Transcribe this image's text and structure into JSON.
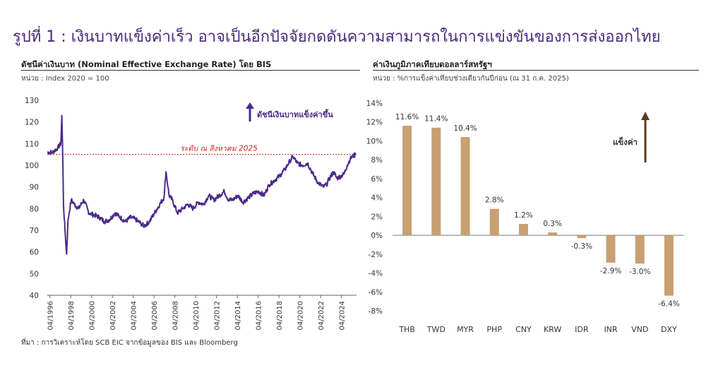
{
  "title": "รูปที่ 1 : เงินบาทแข็งค่าเร็ว อาจเป็นอีกปัจจัยกดดันความสามารถในการแข่งขันของการส่งออกไทย",
  "source": "ที่มา : การวิเคราะห์โดย SCB EIC จากข้อมูลของ BIS และ Bloomberg",
  "colors": {
    "line": "#4b2a8c",
    "bar": "#c8a072",
    "ref_line": "#cc2222",
    "title": "#4b2a7b",
    "arrow_up": "#5a3b1c"
  },
  "chart_data": [
    {
      "type": "line",
      "title": "ดัชนีค่าเงินบาท (Nominal Effective Exchange Rate) โดย BIS",
      "unit": "หน่วย : Index 2020 = 100",
      "ylim": [
        40,
        130
      ],
      "y_ticks": [
        "130",
        "120",
        "110",
        "100",
        "90",
        "80",
        "70",
        "60",
        "50",
        "40"
      ],
      "x_ticks": [
        "04/1996",
        "04/1998",
        "04/2000",
        "04/2002",
        "04/2004",
        "04/2006",
        "04/2008",
        "04/2010",
        "04/2012",
        "04/2014",
        "04/2016",
        "04/2018",
        "04/2020",
        "04/2022",
        "04/2024"
      ],
      "reference": {
        "value": 105,
        "label": "ระดับ ณ สิงหาคม 2025"
      },
      "annotation": "ดัชนีเงินบาทแข็งค่าขึ้น",
      "grid": false,
      "series": [
        {
          "x": [
            1996.0,
            1996.5,
            1997.0,
            1997.3,
            1997.4,
            1997.5,
            1997.55,
            1997.7,
            1997.85,
            1998.0,
            1998.1,
            1998.3,
            1998.6,
            1999.0,
            1999.5,
            2000.0,
            2000.5,
            2001.0,
            2001.5,
            2002.0,
            2002.5,
            2003.0,
            2003.5,
            2004.0,
            2004.5,
            2005.0,
            2005.3,
            2005.8,
            2006.3,
            2006.8,
            2007.2,
            2007.4,
            2007.7,
            2008.0,
            2008.5,
            2009.0,
            2009.5,
            2010.0,
            2010.5,
            2011.0,
            2011.5,
            2012.0,
            2012.5,
            2013.0,
            2013.4,
            2013.8,
            2014.3,
            2014.8,
            2015.3,
            2015.8,
            2016.3,
            2016.8,
            2017.3,
            2017.8,
            2018.3,
            2018.8,
            2019.3,
            2019.6,
            2020.0,
            2020.5,
            2021.0,
            2021.5,
            2022.0,
            2022.5,
            2022.8,
            2023.1,
            2023.5,
            2023.8,
            2024.2,
            2024.5,
            2024.8,
            2025.1,
            2025.3,
            2025.6
          ],
          "values": [
            106,
            106,
            108,
            110,
            123,
            100,
            82,
            70,
            59,
            75,
            78,
            84,
            82,
            80,
            84,
            78,
            77,
            76,
            74,
            75,
            78,
            76,
            74,
            76,
            75,
            73,
            72,
            74,
            78,
            82,
            85,
            97,
            86,
            84,
            78,
            80,
            82,
            80,
            83,
            82,
            86,
            84,
            86,
            88,
            84,
            84,
            86,
            83,
            85,
            87,
            88,
            86,
            91,
            93,
            95,
            98,
            102,
            104,
            101,
            100,
            101,
            96,
            92,
            90,
            91,
            94,
            97,
            94,
            95,
            96,
            100,
            103,
            104,
            105
          ]
        }
      ]
    },
    {
      "type": "bar",
      "title": "ค่าเงินภูมิภาคเทียบดอลลาร์สหรัฐฯ",
      "unit": "หน่วย : %การแข็งค่าเทียบช่วงเดียวกันปีก่อน (ณ 31 ก.ค. 2025)",
      "ylim": [
        -8,
        14
      ],
      "y_ticks": [
        "14%",
        "12%",
        "10%",
        "8%",
        "6%",
        "4%",
        "2%",
        "0%",
        "-2%",
        "-4%",
        "-6%",
        "-8%"
      ],
      "categories": [
        "THB",
        "TWD",
        "MYR",
        "PHP",
        "CNY",
        "KRW",
        "IDR",
        "INR",
        "VND",
        "DXY"
      ],
      "values": [
        11.6,
        11.4,
        10.4,
        2.8,
        1.2,
        0.3,
        -0.3,
        -2.9,
        -3.0,
        -6.4
      ],
      "data_labels": [
        "11.6%",
        "11.4%",
        "10.4%",
        "2.8%",
        "1.2%",
        "0.3%",
        "-0.3%",
        "-2.9%",
        "-3.0%",
        "-6.4%"
      ],
      "annotation": "แข็งค่า",
      "grid": false
    }
  ]
}
